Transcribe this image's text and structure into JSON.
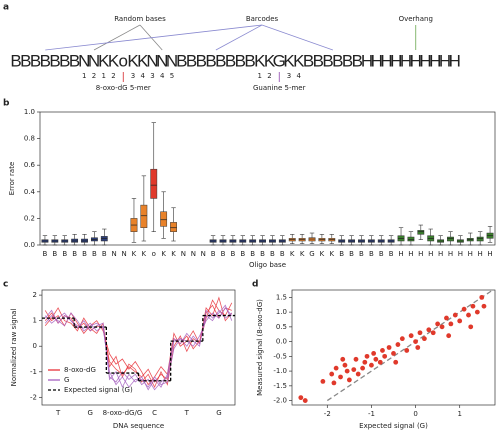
{
  "panel_a": {
    "label": "a",
    "letters": [
      "B",
      "B",
      "B",
      "B",
      "B",
      "B",
      "B",
      "N",
      "N",
      "K",
      "K",
      "o",
      "K",
      "K",
      "N",
      "N",
      "N",
      "B",
      "B",
      "B",
      "B",
      "B",
      "B",
      "B",
      "B",
      "K",
      "K",
      "G",
      "K",
      "K",
      "B",
      "B",
      "B",
      "B",
      "B",
      "B",
      "H",
      "H",
      "H",
      "H",
      "H",
      "H",
      "H",
      "H",
      "H",
      "H"
    ],
    "subscripts": [
      null,
      null,
      null,
      null,
      null,
      null,
      null,
      "1",
      "2",
      "1",
      "2",
      null,
      "3",
      "4",
      "3",
      "4",
      "5",
      null,
      null,
      null,
      null,
      null,
      null,
      null,
      null,
      "1",
      "2",
      null,
      "3",
      "4",
      null,
      null,
      null,
      null,
      null,
      null,
      null,
      null,
      null,
      null,
      null,
      null,
      null,
      null,
      null,
      null
    ],
    "colors": {
      "B": "#3d3d9e",
      "N": "#9a9a9a",
      "K": "#e07b1a",
      "o": "#d62728",
      "G": "#8e44ad",
      "H": "#6aa84f"
    },
    "random_bases": "Random bases",
    "barcodes": "Barcodes",
    "overhang": "Overhang",
    "oxo_5mer": "8-oxo-dG 5-mer",
    "guanine_5mer": "Guanine 5-mer"
  },
  "chart_data": [
    {
      "type": "box",
      "label": "b",
      "ylabel": "Error rate",
      "xlabel": "Oligo base",
      "categories": [
        "B",
        "B",
        "B",
        "B",
        "B",
        "B",
        "B",
        "N",
        "N",
        "K",
        "K",
        "o",
        "K",
        "K",
        "N",
        "N",
        "N",
        "B",
        "B",
        "B",
        "B",
        "B",
        "B",
        "B",
        "B",
        "K",
        "K",
        "G",
        "K",
        "K",
        "B",
        "B",
        "B",
        "B",
        "B",
        "B",
        "H",
        "H",
        "H",
        "H",
        "H",
        "H",
        "H",
        "H",
        "H",
        "H"
      ],
      "colors": {
        "B": "#2c3e7a",
        "K": "#e8822a",
        "o": "#e0392b",
        "G": "#e8822a",
        "H": "#3a7d2c"
      },
      "whisker_low": [
        0,
        0,
        0,
        0,
        0,
        0,
        0,
        null,
        null,
        0.02,
        0.03,
        0.1,
        0.05,
        0.03,
        null,
        null,
        null,
        0,
        0,
        0,
        0,
        0,
        0,
        0,
        0,
        0.01,
        0.01,
        0.01,
        0.01,
        0.01,
        0,
        0,
        0,
        0,
        0,
        0,
        0,
        0,
        0.04,
        0,
        0,
        0,
        0,
        0,
        0,
        0.02
      ],
      "q1": [
        0.02,
        0.02,
        0.02,
        0.02,
        0.02,
        0.03,
        0.03,
        null,
        null,
        0.1,
        0.13,
        0.35,
        0.14,
        0.1,
        null,
        null,
        null,
        0.02,
        0.02,
        0.02,
        0.02,
        0.02,
        0.02,
        0.02,
        0.02,
        0.03,
        0.03,
        0.03,
        0.03,
        0.03,
        0.02,
        0.02,
        0.02,
        0.02,
        0.02,
        0.02,
        0.03,
        0.03,
        0.08,
        0.03,
        0.02,
        0.03,
        0.02,
        0.03,
        0.03,
        0.05
      ],
      "median": [
        0.03,
        0.03,
        0.03,
        0.03,
        0.03,
        0.04,
        0.05,
        null,
        null,
        0.15,
        0.22,
        0.45,
        0.19,
        0.13,
        null,
        null,
        null,
        0.03,
        0.03,
        0.03,
        0.03,
        0.03,
        0.03,
        0.03,
        0.03,
        0.04,
        0.04,
        0.045,
        0.04,
        0.04,
        0.03,
        0.03,
        0.03,
        0.03,
        0.03,
        0.03,
        0.05,
        0.04,
        0.1,
        0.05,
        0.03,
        0.05,
        0.03,
        0.04,
        0.05,
        0.07
      ],
      "q3": [
        0.04,
        0.04,
        0.04,
        0.045,
        0.045,
        0.055,
        0.065,
        null,
        null,
        0.2,
        0.3,
        0.57,
        0.25,
        0.17,
        null,
        null,
        null,
        0.04,
        0.04,
        0.04,
        0.04,
        0.04,
        0.04,
        0.04,
        0.04,
        0.05,
        0.05,
        0.055,
        0.05,
        0.05,
        0.04,
        0.04,
        0.04,
        0.04,
        0.04,
        0.04,
        0.07,
        0.06,
        0.11,
        0.07,
        0.04,
        0.06,
        0.04,
        0.05,
        0.06,
        0.09
      ],
      "whisker_high": [
        0.07,
        0.07,
        0.07,
        0.08,
        0.08,
        0.1,
        0.12,
        null,
        null,
        0.35,
        0.52,
        0.92,
        0.4,
        0.28,
        null,
        null,
        null,
        0.07,
        0.07,
        0.07,
        0.07,
        0.07,
        0.07,
        0.07,
        0.07,
        0.08,
        0.08,
        0.09,
        0.08,
        0.08,
        0.07,
        0.07,
        0.07,
        0.07,
        0.07,
        0.07,
        0.13,
        0.1,
        0.15,
        0.12,
        0.07,
        0.1,
        0.07,
        0.09,
        0.1,
        0.14
      ],
      "ylim": [
        0,
        1.0
      ],
      "yticks": [
        {
          "value": 0,
          "label": "0.0"
        },
        0.2,
        0.4,
        0.6,
        0.8,
        {
          "value": 1,
          "label": "1.0"
        }
      ]
    },
    {
      "type": "line",
      "label": "c",
      "ylabel": "Normalized raw signal",
      "xlabel": "DNA sequence",
      "categories": [
        "T",
        "G",
        "8-oxo-dG/G",
        "C",
        "T",
        "G"
      ],
      "ylim": [
        -2.3,
        2.2
      ],
      "yticks": [
        -2,
        -1,
        0,
        1,
        2
      ],
      "series": [
        {
          "name": "8-oxo-dG",
          "color": "#e8323a",
          "traces": [
            [
              1.0,
              1.3,
              0.9,
              1.2,
              1.1,
              0.7,
              0.9,
              0.6,
              0.8,
              0.7,
              -0.6,
              -0.9,
              -1.1,
              -0.8,
              -1.0,
              -1.2,
              -0.9,
              -1.4,
              -1.1,
              -1.3,
              0.3,
              0.1,
              0.4,
              -0.1,
              0.2,
              1.3,
              1.6,
              1.1,
              1.5,
              1.4
            ],
            [
              1.4,
              1.0,
              1.2,
              0.8,
              1.3,
              0.9,
              0.5,
              0.8,
              1.0,
              0.6,
              -0.3,
              -0.7,
              -0.5,
              -0.9,
              -0.6,
              -1.0,
              -1.5,
              -1.2,
              -0.8,
              -1.1,
              0.5,
              0.0,
              0.2,
              0.6,
              0.1,
              1.1,
              1.8,
              1.4,
              1.2,
              1.7
            ],
            [
              0.8,
              1.1,
              1.5,
              1.0,
              0.9,
              0.6,
              1.1,
              0.7,
              0.5,
              0.9,
              -0.8,
              -0.4,
              -1.2,
              -0.7,
              -0.9,
              -1.4,
              -1.1,
              -1.6,
              -1.0,
              -1.5,
              0.0,
              0.4,
              -0.2,
              0.3,
              0.1,
              1.5,
              1.2,
              1.9,
              1.0,
              1.3
            ]
          ]
        },
        {
          "name": "G",
          "color": "#a55fc0",
          "traces": [
            [
              1.2,
              0.9,
              1.1,
              1.3,
              1.0,
              0.8,
              0.7,
              0.9,
              0.6,
              0.8,
              -1.2,
              -1.4,
              -1.0,
              -1.3,
              -1.1,
              -1.5,
              -1.3,
              -1.7,
              -1.4,
              -1.2,
              0.2,
              0.3,
              0.0,
              0.4,
              0.1,
              1.2,
              1.0,
              1.4,
              1.1,
              1.3
            ],
            [
              0.9,
              1.2,
              1.0,
              0.8,
              1.3,
              1.0,
              0.6,
              0.8,
              0.9,
              0.7,
              -1.0,
              -1.5,
              -1.2,
              -1.6,
              -1.3,
              -1.3,
              -1.6,
              -1.2,
              -1.5,
              -1.4,
              -0.1,
              0.3,
              0.2,
              0.0,
              0.4,
              1.0,
              1.3,
              1.1,
              1.5,
              1.2
            ],
            [
              1.1,
              1.4,
              0.9,
              1.2,
              1.0,
              0.7,
              1.0,
              0.6,
              0.8,
              0.9,
              -1.3,
              -1.0,
              -1.6,
              -1.1,
              -1.4,
              -1.2,
              -1.7,
              -1.3,
              -1.6,
              -1.1,
              0.3,
              0.1,
              0.5,
              0.2,
              0.0,
              1.4,
              1.1,
              1.3,
              1.6,
              1.0
            ]
          ]
        },
        {
          "name": "Expected signal (G)",
          "color": "#000000",
          "dashed": true,
          "values": [
            1.1,
            0.75,
            -1.05,
            -1.35,
            0.2,
            1.2
          ]
        }
      ]
    },
    {
      "type": "scatter",
      "label": "d",
      "xlabel": "Expected signal (G)",
      "ylabel": "Measured signal (8-oxo-dG)",
      "color": "#e0392b",
      "x": [
        -2.6,
        -2.5,
        -2.1,
        -1.9,
        -1.85,
        -1.8,
        -1.7,
        -1.6,
        -1.55,
        -1.5,
        -1.4,
        -1.35,
        -1.3,
        -1.2,
        -1.15,
        -1.1,
        -1.0,
        -0.95,
        -0.9,
        -0.8,
        -0.75,
        -0.7,
        -0.6,
        -0.5,
        -0.4,
        -0.3,
        -0.2,
        -0.1,
        0.0,
        0.1,
        0.2,
        0.3,
        0.4,
        0.5,
        0.6,
        0.7,
        0.8,
        0.9,
        1.0,
        1.1,
        1.2,
        1.3,
        1.4,
        1.5,
        1.55,
        0.75,
        1.25,
        -0.45,
        -1.65,
        0.05
      ],
      "y": [
        -1.9,
        -2.0,
        -1.35,
        -1.1,
        -1.4,
        -0.9,
        -1.2,
        -0.8,
        -1.0,
        -1.3,
        -0.95,
        -0.6,
        -1.1,
        -0.9,
        -0.7,
        -0.5,
        -0.8,
        -0.4,
        -0.6,
        -0.7,
        -0.3,
        -0.5,
        -0.2,
        -0.4,
        -0.1,
        0.1,
        -0.3,
        0.2,
        0.0,
        0.3,
        0.1,
        0.4,
        0.3,
        0.6,
        0.5,
        0.8,
        0.6,
        0.9,
        0.7,
        1.1,
        0.9,
        1.2,
        1.0,
        1.5,
        1.2,
        0.2,
        0.5,
        -0.7,
        -0.6,
        -0.2
      ],
      "xlim": [
        -2.8,
        1.8
      ],
      "xticks": [
        -2,
        -1,
        0,
        1
      ],
      "ylim": [
        -2.15,
        1.75
      ],
      "yticks": [
        {
          "value": -2,
          "label": "-2.0"
        },
        -1.5,
        {
          "value": -1,
          "label": "-1.0"
        },
        -0.5,
        {
          "value": 0,
          "label": "0.0"
        },
        0.5,
        {
          "value": 1,
          "label": "1.0"
        },
        1.5
      ],
      "diagonal": true
    }
  ]
}
